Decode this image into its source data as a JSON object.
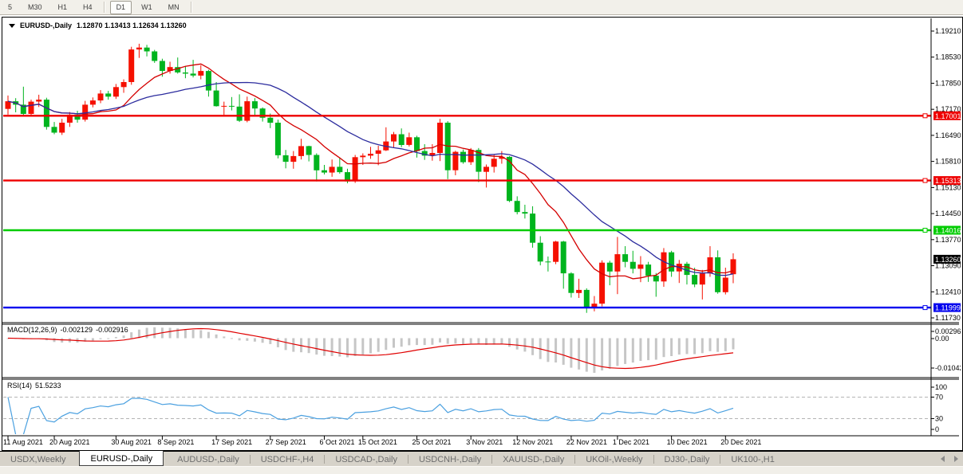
{
  "toolbar": {
    "items": [
      "5",
      "M30",
      "H1",
      "H4",
      "D1",
      "W1",
      "MN"
    ],
    "active": "D1"
  },
  "window": {
    "title_symbol": "EURUSD-,Daily",
    "title_ohlc": "1.12870 1.13413 1.12634 1.13260"
  },
  "chart_data": {
    "type": "candlestick",
    "symbol": "EURUSD-,Daily",
    "timeframe": "Daily",
    "current_ohlc": {
      "o": 1.1287,
      "h": 1.13413,
      "l": 1.12634,
      "c": 1.1326
    },
    "up_color": "#f51000",
    "down_color": "#00b41e",
    "price_axis": {
      "top_price": 1.1921,
      "bottom_price": 1.1173,
      "ticks": [
        "1.19210",
        "1.18530",
        "1.17850",
        "1.17170",
        "1.16490",
        "1.15810",
        "1.15130",
        "1.14450",
        "1.13770",
        "1.13090",
        "1.12410",
        "1.11730"
      ]
    },
    "hlines": [
      {
        "price": 1.17001,
        "label": "1.17001",
        "color": "#ee0000"
      },
      {
        "price": 1.15313,
        "label": "1.15313",
        "color": "#ee0000"
      },
      {
        "price": 1.14016,
        "label": "1.14016",
        "color": "#00cc00"
      },
      {
        "price": 1.11999,
        "label": "1.11999",
        "color": "#0000ee"
      }
    ],
    "current_price_label": {
      "label": "1.13260",
      "price": 1.1326,
      "bg": "#000000",
      "fg": "#ffffff"
    },
    "moving_averages": [
      {
        "name": "ma-fast",
        "period": 10,
        "color": "#d40000"
      },
      {
        "name": "ma-slow",
        "period": 21,
        "color": "#2c2c9e"
      }
    ],
    "x_ticks": [
      {
        "i": 0,
        "label": "11 Aug 2021"
      },
      {
        "i": 6,
        "label": "20 Aug 2021"
      },
      {
        "i": 14,
        "label": "30 Aug 2021"
      },
      {
        "i": 20,
        "label": "8 Sep 2021"
      },
      {
        "i": 27,
        "label": "17 Sep 2021"
      },
      {
        "i": 34,
        "label": "27 Sep 2021"
      },
      {
        "i": 41,
        "label": "6 Oct 2021"
      },
      {
        "i": 46,
        "label": "15 Oct 2021"
      },
      {
        "i": 53,
        "label": "25 Oct 2021"
      },
      {
        "i": 60,
        "label": "3 Nov 2021"
      },
      {
        "i": 66,
        "label": "12 Nov 2021"
      },
      {
        "i": 73,
        "label": "22 Nov 2021"
      },
      {
        "i": 79,
        "label": "1 Dec 2021"
      },
      {
        "i": 86,
        "label": "10 Dec 2021"
      },
      {
        "i": 93,
        "label": "20 Dec 2021"
      }
    ],
    "candles": [
      [
        1.1718,
        1.1753,
        1.1703,
        1.1738
      ],
      [
        1.1738,
        1.1746,
        1.1709,
        1.1729
      ],
      [
        1.1729,
        1.1776,
        1.1698,
        1.1705
      ],
      [
        1.1705,
        1.1742,
        1.17,
        1.1737
      ],
      [
        1.1737,
        1.1755,
        1.1723,
        1.1742
      ],
      [
        1.1742,
        1.1747,
        1.1664,
        1.1671
      ],
      [
        1.1671,
        1.1684,
        1.1652,
        1.1656
      ],
      [
        1.1656,
        1.1692,
        1.165,
        1.1682
      ],
      [
        1.1682,
        1.171,
        1.1671,
        1.1703
      ],
      [
        1.1703,
        1.1713,
        1.1682,
        1.169
      ],
      [
        1.169,
        1.1739,
        1.1685,
        1.1729
      ],
      [
        1.1729,
        1.1748,
        1.1722,
        1.174
      ],
      [
        1.174,
        1.1767,
        1.1733,
        1.1758
      ],
      [
        1.1758,
        1.1765,
        1.1742,
        1.175
      ],
      [
        1.175,
        1.1783,
        1.1744,
        1.1775
      ],
      [
        1.1775,
        1.1795,
        1.176,
        1.1788
      ],
      [
        1.1788,
        1.188,
        1.1781,
        1.1873
      ],
      [
        1.1873,
        1.1888,
        1.1851,
        1.1878
      ],
      [
        1.1878,
        1.1885,
        1.1855,
        1.1868
      ],
      [
        1.1868,
        1.1872,
        1.1838,
        1.1843
      ],
      [
        1.1843,
        1.1849,
        1.1802,
        1.1817
      ],
      [
        1.1817,
        1.1841,
        1.181,
        1.1827
      ],
      [
        1.1827,
        1.1852,
        1.181,
        1.1813
      ],
      [
        1.1813,
        1.183,
        1.1798,
        1.181
      ],
      [
        1.181,
        1.1846,
        1.18,
        1.1805
      ],
      [
        1.1805,
        1.1832,
        1.1795,
        1.1817
      ],
      [
        1.1817,
        1.182,
        1.175,
        1.1766
      ],
      [
        1.1766,
        1.1788,
        1.1724,
        1.1725
      ],
      [
        1.1725,
        1.1737,
        1.17,
        1.1726
      ],
      [
        1.1726,
        1.1749,
        1.1714,
        1.1724
      ],
      [
        1.1724,
        1.1756,
        1.1684,
        1.1687
      ],
      [
        1.1687,
        1.175,
        1.1683,
        1.1738
      ],
      [
        1.1738,
        1.1746,
        1.1701,
        1.1719
      ],
      [
        1.1719,
        1.1722,
        1.1685,
        1.1695
      ],
      [
        1.1695,
        1.1706,
        1.1668,
        1.1682
      ],
      [
        1.1682,
        1.169,
        1.1589,
        1.1597
      ],
      [
        1.1597,
        1.1611,
        1.1563,
        1.158
      ],
      [
        1.158,
        1.1608,
        1.1562,
        1.1595
      ],
      [
        1.1595,
        1.164,
        1.1586,
        1.1621
      ],
      [
        1.1621,
        1.1622,
        1.1581,
        1.1598
      ],
      [
        1.1598,
        1.1602,
        1.1529,
        1.1558
      ],
      [
        1.1558,
        1.1572,
        1.1547,
        1.1552
      ],
      [
        1.1552,
        1.1586,
        1.1541,
        1.1567
      ],
      [
        1.1567,
        1.1591,
        1.1549,
        1.1553
      ],
      [
        1.1553,
        1.1562,
        1.1524,
        1.1529
      ],
      [
        1.1529,
        1.1598,
        1.1525,
        1.1592
      ],
      [
        1.1592,
        1.1602,
        1.1572,
        1.1596
      ],
      [
        1.1596,
        1.1619,
        1.1588,
        1.1601
      ],
      [
        1.1601,
        1.1622,
        1.1571,
        1.161
      ],
      [
        1.161,
        1.167,
        1.1608,
        1.1633
      ],
      [
        1.1633,
        1.1658,
        1.1617,
        1.1652
      ],
      [
        1.1652,
        1.1667,
        1.1618,
        1.1624
      ],
      [
        1.1624,
        1.1656,
        1.162,
        1.1644
      ],
      [
        1.1644,
        1.1648,
        1.1591,
        1.1608
      ],
      [
        1.1608,
        1.1626,
        1.1585,
        1.1596
      ],
      [
        1.1596,
        1.1626,
        1.1583,
        1.1603
      ],
      [
        1.1603,
        1.1692,
        1.1582,
        1.1682
      ],
      [
        1.1682,
        1.1686,
        1.1535,
        1.1558
      ],
      [
        1.1558,
        1.1609,
        1.1545,
        1.1606
      ],
      [
        1.1606,
        1.1612,
        1.1575,
        1.1579
      ],
      [
        1.1579,
        1.1616,
        1.1572,
        1.1611
      ],
      [
        1.1611,
        1.1616,
        1.1527,
        1.1554
      ],
      [
        1.1554,
        1.1573,
        1.1513,
        1.1567
      ],
      [
        1.1567,
        1.1598,
        1.1552,
        1.1588
      ],
      [
        1.1588,
        1.1608,
        1.1575,
        1.1593
      ],
      [
        1.1593,
        1.1595,
        1.1475,
        1.1478
      ],
      [
        1.1478,
        1.149,
        1.1443,
        1.1449
      ],
      [
        1.1449,
        1.1468,
        1.1432,
        1.1445
      ],
      [
        1.1445,
        1.1464,
        1.1356,
        1.1369
      ],
      [
        1.1369,
        1.1386,
        1.131,
        1.132
      ],
      [
        1.132,
        1.1333,
        1.1294,
        1.1319
      ],
      [
        1.1319,
        1.1374,
        1.1313,
        1.1372
      ],
      [
        1.1372,
        1.1374,
        1.1249,
        1.1289
      ],
      [
        1.1289,
        1.1292,
        1.1226,
        1.1238
      ],
      [
        1.1238,
        1.1275,
        1.1225,
        1.1246
      ],
      [
        1.1246,
        1.125,
        1.1186,
        1.1198
      ],
      [
        1.1198,
        1.123,
        1.119,
        1.121
      ],
      [
        1.121,
        1.1323,
        1.1203,
        1.1317
      ],
      [
        1.1317,
        1.1322,
        1.1258,
        1.1294
      ],
      [
        1.1294,
        1.1384,
        1.1235,
        1.1339
      ],
      [
        1.1339,
        1.136,
        1.1305,
        1.1319
      ],
      [
        1.1319,
        1.1348,
        1.1289,
        1.1301
      ],
      [
        1.1301,
        1.1334,
        1.1266,
        1.1312
      ],
      [
        1.1312,
        1.1319,
        1.1267,
        1.1283
      ],
      [
        1.1283,
        1.129,
        1.1228,
        1.1268
      ],
      [
        1.1268,
        1.1355,
        1.1254,
        1.1344
      ],
      [
        1.1344,
        1.1348,
        1.128,
        1.1294
      ],
      [
        1.1294,
        1.1324,
        1.1264,
        1.1314
      ],
      [
        1.1314,
        1.1319,
        1.126,
        1.1285
      ],
      [
        1.1285,
        1.1304,
        1.1253,
        1.126
      ],
      [
        1.126,
        1.1298,
        1.1221,
        1.1289
      ],
      [
        1.1289,
        1.136,
        1.128,
        1.1331
      ],
      [
        1.1331,
        1.1349,
        1.1236,
        1.124
      ],
      [
        1.124,
        1.1304,
        1.1234,
        1.1278
      ],
      [
        1.1287,
        1.13413,
        1.12634,
        1.1326
      ]
    ],
    "macd": {
      "label": "MACD(12,26,9)",
      "value_main": "-0.002129",
      "value_signal": "-0.002916",
      "fast": 12,
      "slow": 26,
      "signal": 9,
      "hist_color": "#c6c6c6",
      "line_color": "#e00000",
      "axis_ticks": [
        "0.002966",
        "0.00",
        "-0.01042"
      ]
    },
    "rsi": {
      "label": "RSI(14)",
      "value": "51.5233",
      "period": 14,
      "color": "#4aa0e0",
      "levels": [
        "100",
        "70",
        "30",
        "0"
      ],
      "level_lines": [
        70,
        30
      ]
    }
  },
  "tabs": {
    "items": [
      {
        "label": "USDX,Weekly",
        "active": false
      },
      {
        "label": "EURUSD-,Daily",
        "active": true
      },
      {
        "label": "AUDUSD-,Daily",
        "active": false
      },
      {
        "label": "USDCHF-,H4",
        "active": false
      },
      {
        "label": "USDCAD-,Daily",
        "active": false
      },
      {
        "label": "USDCNH-,Daily",
        "active": false
      },
      {
        "label": "XAUUSD-,Daily",
        "active": false
      },
      {
        "label": "UKOil-,Weekly",
        "active": false
      },
      {
        "label": "DJ30-,Daily",
        "active": false
      },
      {
        "label": "UK100-,H1",
        "active": false
      }
    ]
  }
}
